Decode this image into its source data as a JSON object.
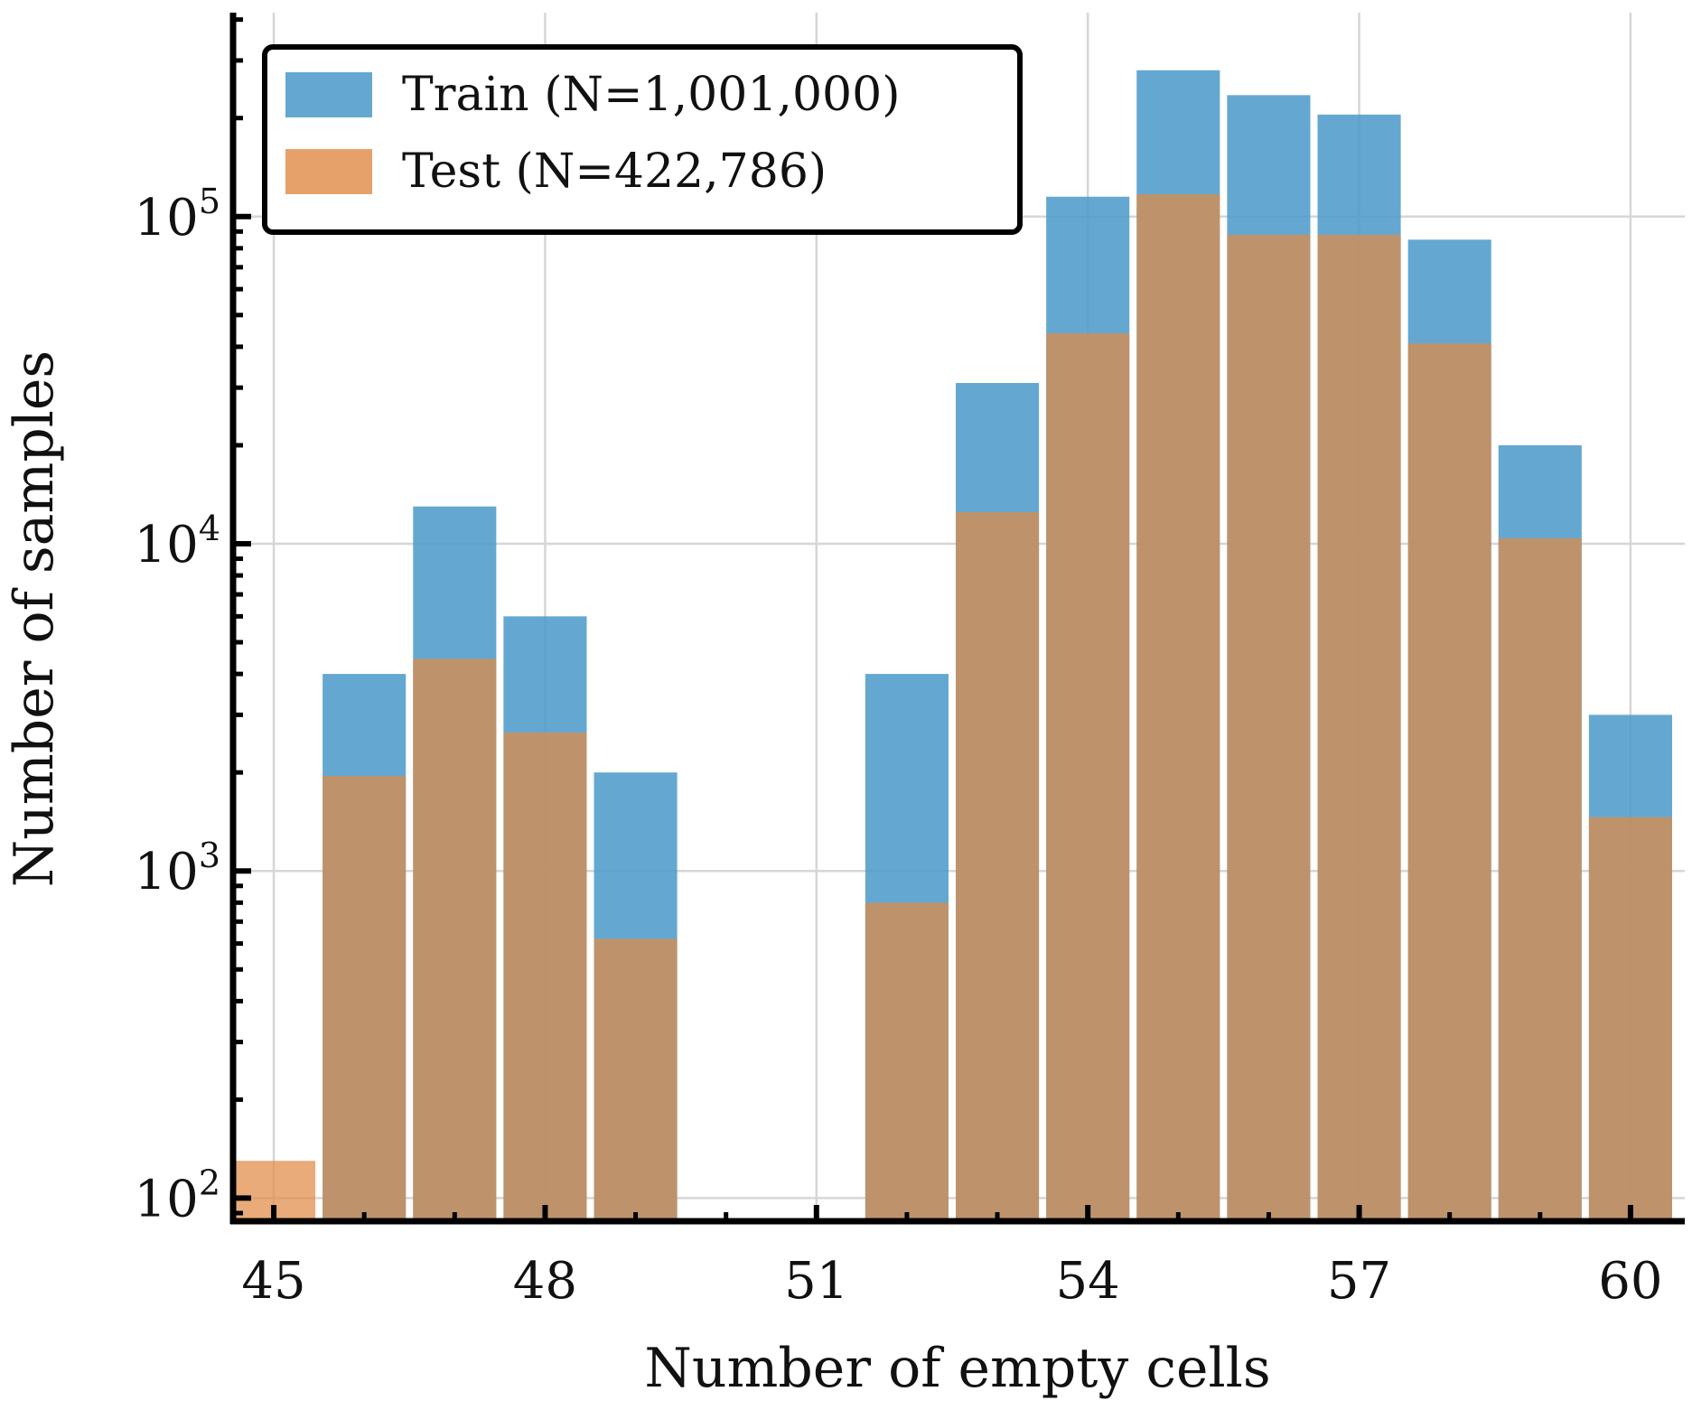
{
  "chart_data": {
    "type": "bar",
    "title": "",
    "xlabel": "Number of empty cells",
    "ylabel": "Number of samples",
    "yscale": "log",
    "ylim": [
      85,
      420000
    ],
    "xlim": [
      44.55,
      60.6
    ],
    "grid": true,
    "legend_position": "top-left",
    "x": [
      45,
      46,
      47,
      48,
      49,
      50,
      51,
      52,
      53,
      54,
      55,
      56,
      57,
      58,
      59,
      60
    ],
    "series": [
      {
        "name": "Train (N=1,001,000)",
        "color": "#4f9ccb",
        "values": [
          null,
          4000,
          13000,
          6000,
          2000,
          null,
          null,
          4000,
          31000,
          115000,
          280000,
          235000,
          205000,
          85000,
          20000,
          3000
        ]
      },
      {
        "name": "Test (N=422,786)",
        "color": "#e08a45",
        "values": [
          130,
          1950,
          4450,
          2650,
          620,
          null,
          null,
          800,
          12500,
          44000,
          117000,
          88000,
          88000,
          41000,
          10400,
          1460
        ]
      }
    ],
    "x_ticks": [
      "45",
      "48",
      "51",
      "54",
      "57",
      "60"
    ],
    "y_ticks": [
      {
        "value": 100,
        "label": "10",
        "exp": "2"
      },
      {
        "value": 1000,
        "label": "10",
        "exp": "3"
      },
      {
        "value": 10000,
        "label": "10",
        "exp": "4"
      },
      {
        "value": 100000,
        "label": "10",
        "exp": "5"
      }
    ]
  }
}
